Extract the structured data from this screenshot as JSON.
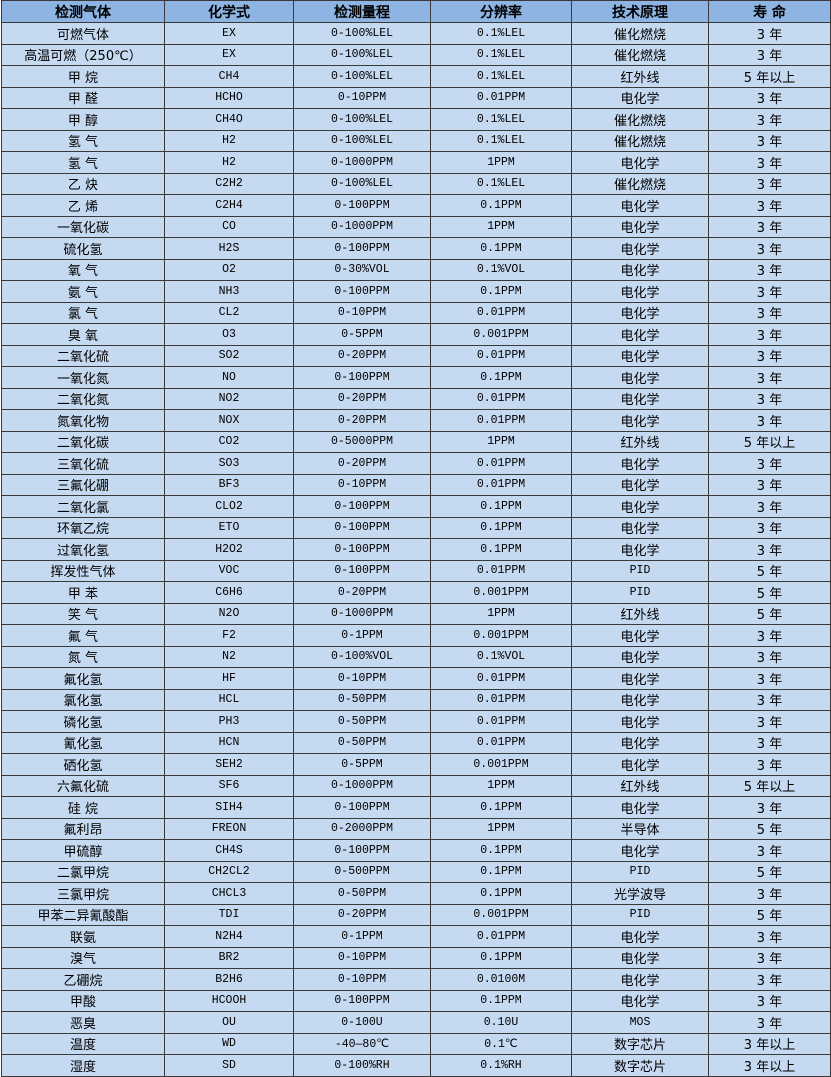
{
  "colors": {
    "header_bg": "#8db4e2",
    "row_bg": "#c5d9f1",
    "border": "#3a3a3a"
  },
  "table": {
    "headers": [
      "检测气体",
      "化学式",
      "检测量程",
      "分辨率",
      "技术原理",
      "寿  命"
    ],
    "rows": [
      [
        "可燃气体",
        "EX",
        "0-100%LEL",
        "0.1%LEL",
        "催化燃烧",
        "3 年"
      ],
      [
        "高温可燃（250℃）",
        "EX",
        "0-100%LEL",
        "0.1%LEL",
        "催化燃烧",
        "3 年"
      ],
      [
        "甲 烷",
        "CH4",
        "0-100%LEL",
        "0.1%LEL",
        "红外线",
        "5 年以上"
      ],
      [
        "甲 醛",
        "HCHO",
        "0-10PPM",
        "0.01PPM",
        "电化学",
        "3 年"
      ],
      [
        "甲 醇",
        "CH4O",
        "0-100%LEL",
        "0.1%LEL",
        "催化燃烧",
        "3 年"
      ],
      [
        "氢 气",
        "H2",
        "0-100%LEL",
        "0.1%LEL",
        "催化燃烧",
        "3 年"
      ],
      [
        "氢 气",
        "H2",
        "0-1000PPM",
        "1PPM",
        "电化学",
        "3 年"
      ],
      [
        "乙 炔",
        "C2H2",
        "0-100%LEL",
        "0.1%LEL",
        "催化燃烧",
        "3 年"
      ],
      [
        "乙 烯",
        "C2H4",
        "0-100PPM",
        "0.1PPM",
        "电化学",
        "3 年"
      ],
      [
        "一氧化碳",
        "CO",
        "0-1000PPM",
        "1PPM",
        "电化学",
        "3 年"
      ],
      [
        "硫化氢",
        "H2S",
        "0-100PPM",
        "0.1PPM",
        "电化学",
        "3 年"
      ],
      [
        "氧 气",
        "O2",
        "0-30%VOL",
        "0.1%VOL",
        "电化学",
        "3 年"
      ],
      [
        "氨 气",
        "NH3",
        "0-100PPM",
        "0.1PPM",
        "电化学",
        "3 年"
      ],
      [
        "氯 气",
        "CL2",
        "0-10PPM",
        "0.01PPM",
        "电化学",
        "3 年"
      ],
      [
        "臭 氧",
        "O3",
        "0-5PPM",
        "0.001PPM",
        "电化学",
        "3 年"
      ],
      [
        "二氧化硫",
        "SO2",
        "0-20PPM",
        "0.01PPM",
        "电化学",
        "3 年"
      ],
      [
        "一氧化氮",
        "NO",
        "0-100PPM",
        "0.1PPM",
        "电化学",
        "3 年"
      ],
      [
        "二氧化氮",
        "NO2",
        "0-20PPM",
        "0.01PPM",
        "电化学",
        "3 年"
      ],
      [
        "氮氧化物",
        "NOX",
        "0-20PPM",
        "0.01PPM",
        "电化学",
        "3 年"
      ],
      [
        "二氧化碳",
        "CO2",
        "0-5000PPM",
        "1PPM",
        "红外线",
        "5 年以上"
      ],
      [
        "三氧化硫",
        "SO3",
        "0-20PPM",
        "0.01PPM",
        "电化学",
        "3 年"
      ],
      [
        "三氟化硼",
        "BF3",
        "0-10PPM",
        "0.01PPM",
        "电化学",
        "3 年"
      ],
      [
        "二氧化氯",
        "CLO2",
        "0-100PPM",
        "0.1PPM",
        "电化学",
        "3 年"
      ],
      [
        "环氧乙烷",
        "ETO",
        "0-100PPM",
        "0.1PPM",
        "电化学",
        "3 年"
      ],
      [
        "过氧化氢",
        "H2O2",
        "0-100PPM",
        "0.1PPM",
        "电化学",
        "3 年"
      ],
      [
        "挥发性气体",
        "VOC",
        "0-100PPM",
        "0.01PPM",
        "PID",
        "5 年"
      ],
      [
        "甲 苯",
        "C6H6",
        "0-20PPM",
        "0.001PPM",
        "PID",
        "5 年"
      ],
      [
        "笑 气",
        "N2O",
        "0-1000PPM",
        "1PPM",
        "红外线",
        "5 年"
      ],
      [
        "氟 气",
        "F2",
        "0-1PPM",
        "0.001PPM",
        "电化学",
        "3 年"
      ],
      [
        "氮 气",
        "N2",
        "0-100%VOL",
        "0.1%VOL",
        "电化学",
        "3 年"
      ],
      [
        "氟化氢",
        "HF",
        "0-10PPM",
        "0.01PPM",
        "电化学",
        "3 年"
      ],
      [
        "氯化氢",
        "HCL",
        "0-50PPM",
        "0.01PPM",
        "电化学",
        "3 年"
      ],
      [
        "磷化氢",
        "PH3",
        "0-50PPM",
        "0.01PPM",
        "电化学",
        "3 年"
      ],
      [
        "氰化氢",
        "HCN",
        "0-50PPM",
        "0.01PPM",
        "电化学",
        "3 年"
      ],
      [
        "硒化氢",
        "SEH2",
        "0-5PPM",
        "0.001PPM",
        "电化学",
        "3 年"
      ],
      [
        "六氟化硫",
        "SF6",
        "0-1000PPM",
        "1PPM",
        "红外线",
        "5 年以上"
      ],
      [
        "硅 烷",
        "SIH4",
        "0-100PPM",
        "0.1PPM",
        "电化学",
        "3 年"
      ],
      [
        "氟利昂",
        "FREON",
        "0-2000PPM",
        "1PPM",
        "半导体",
        "5 年"
      ],
      [
        "甲硫醇",
        "CH4S",
        "0-100PPM",
        "0.1PPM",
        "电化学",
        "3 年"
      ],
      [
        "二氯甲烷",
        "CH2CL2",
        "0-500PPM",
        "0.1PPM",
        "PID",
        "5 年"
      ],
      [
        "三氯甲烷",
        "CHCL3",
        "0-50PPM",
        "0.1PPM",
        "光学波导",
        "3 年"
      ],
      [
        "甲苯二异氰酸酯",
        "TDI",
        "0-20PPM",
        "0.001PPM",
        "PID",
        "5 年"
      ],
      [
        "联氨",
        "N2H4",
        "0-1PPM",
        "0.01PPM",
        "电化学",
        "3 年"
      ],
      [
        "溴气",
        "BR2",
        "0-10PPM",
        "0.1PPM",
        "电化学",
        "3 年"
      ],
      [
        "乙硼烷",
        "B2H6",
        "0-10PPM",
        "0.0100M",
        "电化学",
        "3 年"
      ],
      [
        "甲酸",
        "HCOOH",
        "0-100PPM",
        "0.1PPM",
        "电化学",
        "3 年"
      ],
      [
        "恶臭",
        "OU",
        "0-100U",
        "0.10U",
        "MOS",
        "3 年"
      ],
      [
        "温度",
        "WD",
        "-40—80℃",
        "0.1℃",
        "数字芯片",
        "3 年以上"
      ],
      [
        "湿度",
        "SD",
        "0-100%RH",
        "0.1%RH",
        "数字芯片",
        "3 年以上"
      ]
    ]
  }
}
